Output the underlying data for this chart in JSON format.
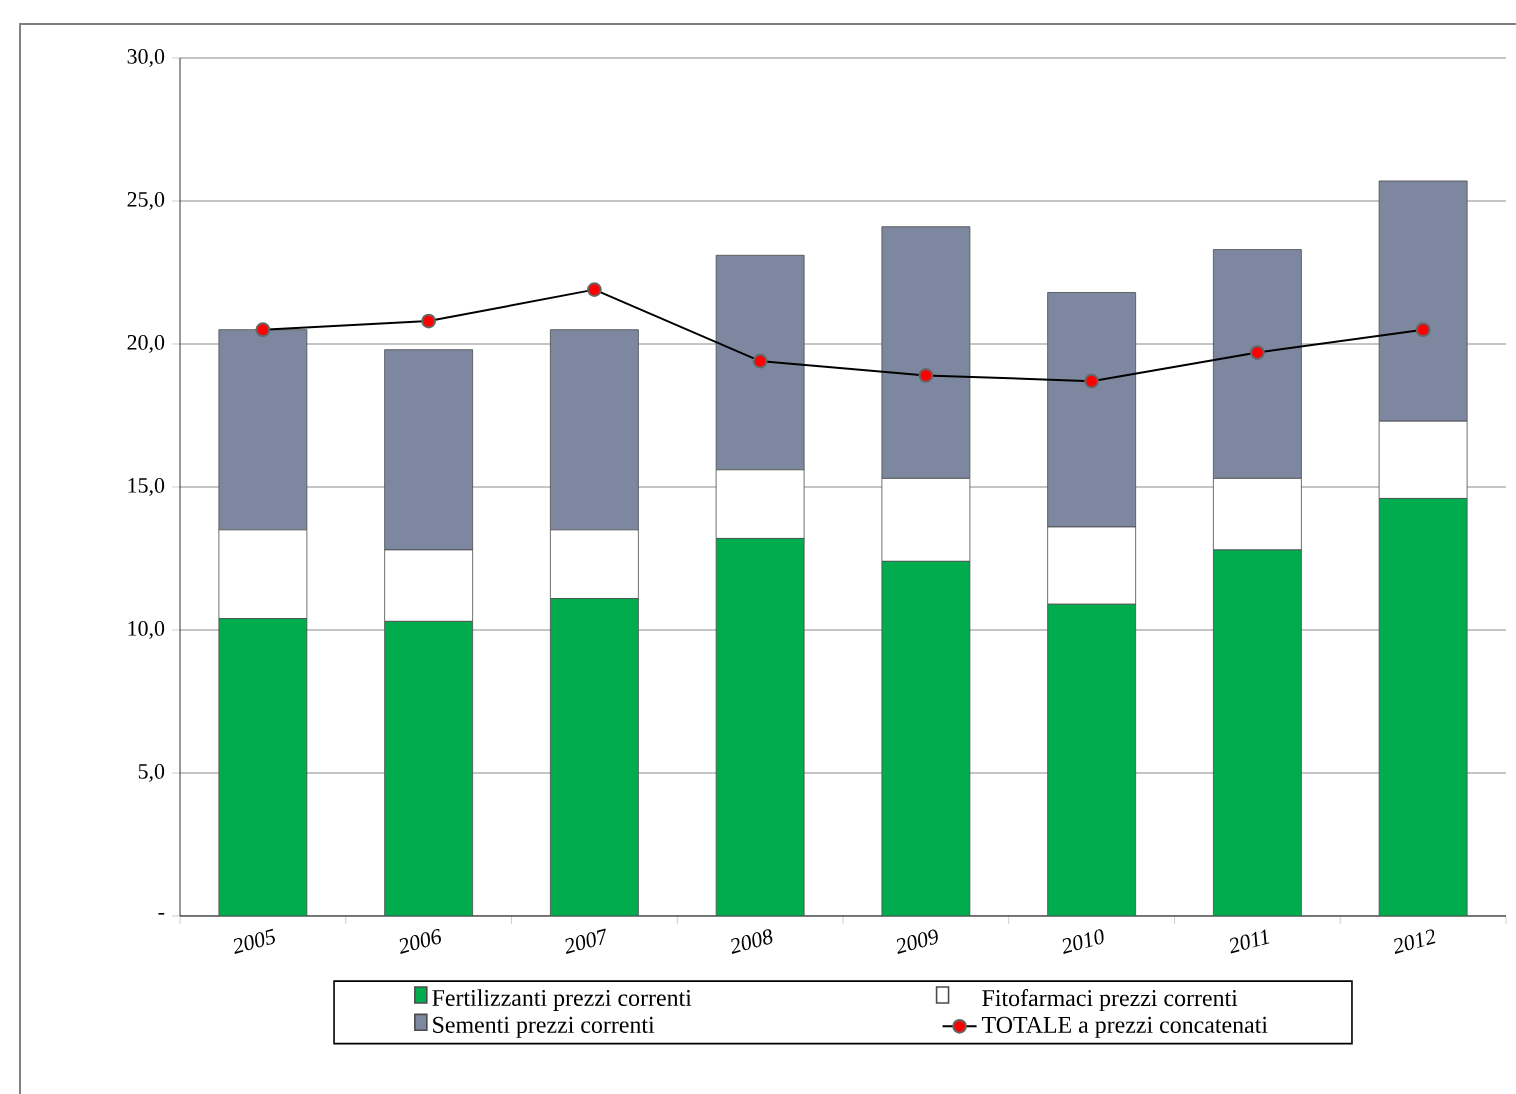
{
  "chart_data": {
    "type": "bar",
    "stacked": true,
    "categories": [
      "2005",
      "2006",
      "2007",
      "2008",
      "2009",
      "2010",
      "2011",
      "2012"
    ],
    "series": [
      {
        "name": "Fertilizzanti prezzi correnti",
        "color": "#00ac4e",
        "values": [
          10.4,
          10.3,
          11.1,
          13.2,
          12.4,
          10.9,
          12.8,
          14.6
        ]
      },
      {
        "name": "Fitofarmaci prezzi correnti",
        "color": "#ffffff",
        "values": [
          3.1,
          2.5,
          2.4,
          2.4,
          2.9,
          2.7,
          2.5,
          2.7
        ]
      },
      {
        "name": "Sementi prezzi correnti",
        "color": "#7d879f",
        "values": [
          7.0,
          7.0,
          7.0,
          7.5,
          8.8,
          8.2,
          8.0,
          8.4
        ]
      },
      {
        "name": "TOTALE a prezzi concatenati",
        "type": "line",
        "color": "#ff0000",
        "marker": "circle",
        "values": [
          20.5,
          20.8,
          21.9,
          19.4,
          18.9,
          18.7,
          19.7,
          20.5
        ]
      }
    ],
    "ylim": [
      0,
      30
    ],
    "yticks": [
      {
        "value": 0,
        "label": "-"
      },
      {
        "value": 5,
        "label": "5,0"
      },
      {
        "value": 10,
        "label": "10,0"
      },
      {
        "value": 15,
        "label": "15,0"
      },
      {
        "value": 20,
        "label": "20,0"
      },
      {
        "value": 25,
        "label": "25,0"
      },
      {
        "value": 30,
        "label": "30,0"
      }
    ],
    "grid": "y",
    "legend": "bottom"
  }
}
